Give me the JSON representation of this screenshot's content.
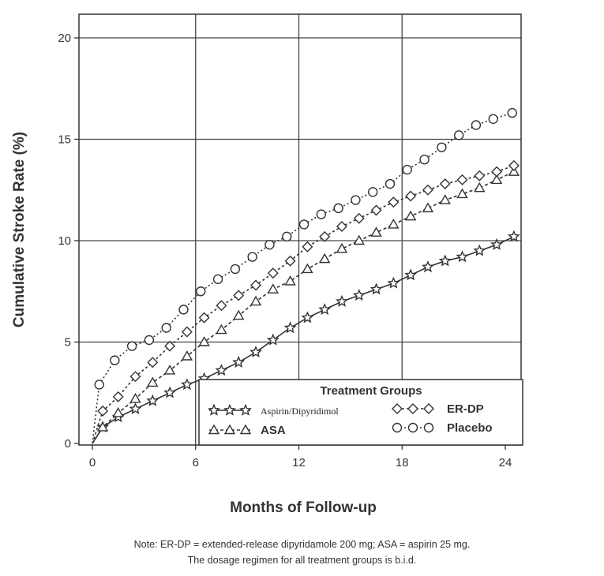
{
  "chart_data": {
    "type": "line",
    "ylabel": "Cumulative Stroke Rate (%)",
    "xlabel": "Months of Follow-up",
    "xlim": [
      0,
      24
    ],
    "ylim": [
      0,
      20
    ],
    "xticks": [
      0,
      6,
      12,
      18,
      24
    ],
    "yticks": [
      0,
      5,
      10,
      15,
      20
    ],
    "grid": true,
    "legend": {
      "title": "Treatment Groups",
      "placement": "bottom-right"
    },
    "series": [
      {
        "name": "Aspirin/Dipyridimol",
        "marker": "star",
        "x": [
          0,
          0.6,
          1.5,
          2.5,
          3.5,
          4.5,
          5.5,
          6.5,
          7.5,
          8.5,
          9.5,
          10.5,
          11.5,
          12.5,
          13.5,
          14.5,
          15.5,
          16.5,
          17.5,
          18.5,
          19.5,
          20.5,
          21.5,
          22.5,
          23.5,
          24.5
        ],
        "y": [
          0,
          0.8,
          1.3,
          1.7,
          2.1,
          2.5,
          2.9,
          3.2,
          3.6,
          4.0,
          4.5,
          5.1,
          5.7,
          6.2,
          6.6,
          7.0,
          7.3,
          7.6,
          7.9,
          8.3,
          8.7,
          9.0,
          9.2,
          9.5,
          9.8,
          10.2
        ]
      },
      {
        "name": "ASA",
        "marker": "triangle",
        "x": [
          0,
          0.6,
          1.5,
          2.5,
          3.5,
          4.5,
          5.5,
          6.5,
          7.5,
          8.5,
          9.5,
          10.5,
          11.5,
          12.5,
          13.5,
          14.5,
          15.5,
          16.5,
          17.5,
          18.5,
          19.5,
          20.5,
          21.5,
          22.5,
          23.5,
          24.5
        ],
        "y": [
          0,
          0.8,
          1.5,
          2.2,
          3.0,
          3.6,
          4.3,
          5.0,
          5.6,
          6.3,
          7.0,
          7.6,
          8.0,
          8.6,
          9.1,
          9.6,
          10.0,
          10.4,
          10.8,
          11.2,
          11.6,
          12.0,
          12.3,
          12.6,
          13.0,
          13.4
        ]
      },
      {
        "name": "ER-DP",
        "marker": "diamond",
        "x": [
          0,
          0.6,
          1.5,
          2.5,
          3.5,
          4.5,
          5.5,
          6.5,
          7.5,
          8.5,
          9.5,
          10.5,
          11.5,
          12.5,
          13.5,
          14.5,
          15.5,
          16.5,
          17.5,
          18.5,
          19.5,
          20.5,
          21.5,
          22.5,
          23.5,
          24.5
        ],
        "y": [
          0,
          1.6,
          2.3,
          3.3,
          4.0,
          4.8,
          5.5,
          6.2,
          6.8,
          7.3,
          7.8,
          8.4,
          9.0,
          9.7,
          10.2,
          10.7,
          11.1,
          11.5,
          11.9,
          12.2,
          12.5,
          12.8,
          13.0,
          13.2,
          13.4,
          13.7
        ]
      },
      {
        "name": "Placebo",
        "marker": "circle",
        "x": [
          0,
          0.4,
          1.3,
          2.3,
          3.3,
          4.3,
          5.3,
          6.3,
          7.3,
          8.3,
          9.3,
          10.3,
          11.3,
          12.3,
          13.3,
          14.3,
          15.3,
          16.3,
          17.3,
          18.3,
          19.3,
          20.3,
          21.3,
          22.3,
          23.3,
          24.4
        ],
        "y": [
          0,
          2.9,
          4.1,
          4.8,
          5.1,
          5.7,
          6.6,
          7.5,
          8.1,
          8.6,
          9.2,
          9.8,
          10.2,
          10.8,
          11.3,
          11.6,
          12.0,
          12.4,
          12.8,
          13.5,
          14.0,
          14.6,
          15.2,
          15.7,
          16.0,
          16.3
        ]
      }
    ]
  },
  "note": {
    "line1": "Note: ER-DP = extended-release dipyridamole 200 mg; ASA = aspirin 25 mg.",
    "line2": "The dosage regimen for all treatment groups is b.i.d."
  }
}
